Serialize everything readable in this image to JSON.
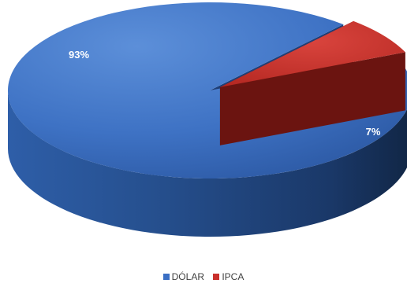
{
  "chart_data": {
    "type": "pie",
    "style": "3d",
    "legend_position": "bottom",
    "slices": [
      {
        "label": "DÓLAR",
        "value": 93,
        "data_label": "93%",
        "color": "#3A6FC4"
      },
      {
        "label": "IPCA",
        "value": 7,
        "data_label": "7%",
        "color": "#C9302C"
      }
    ]
  }
}
